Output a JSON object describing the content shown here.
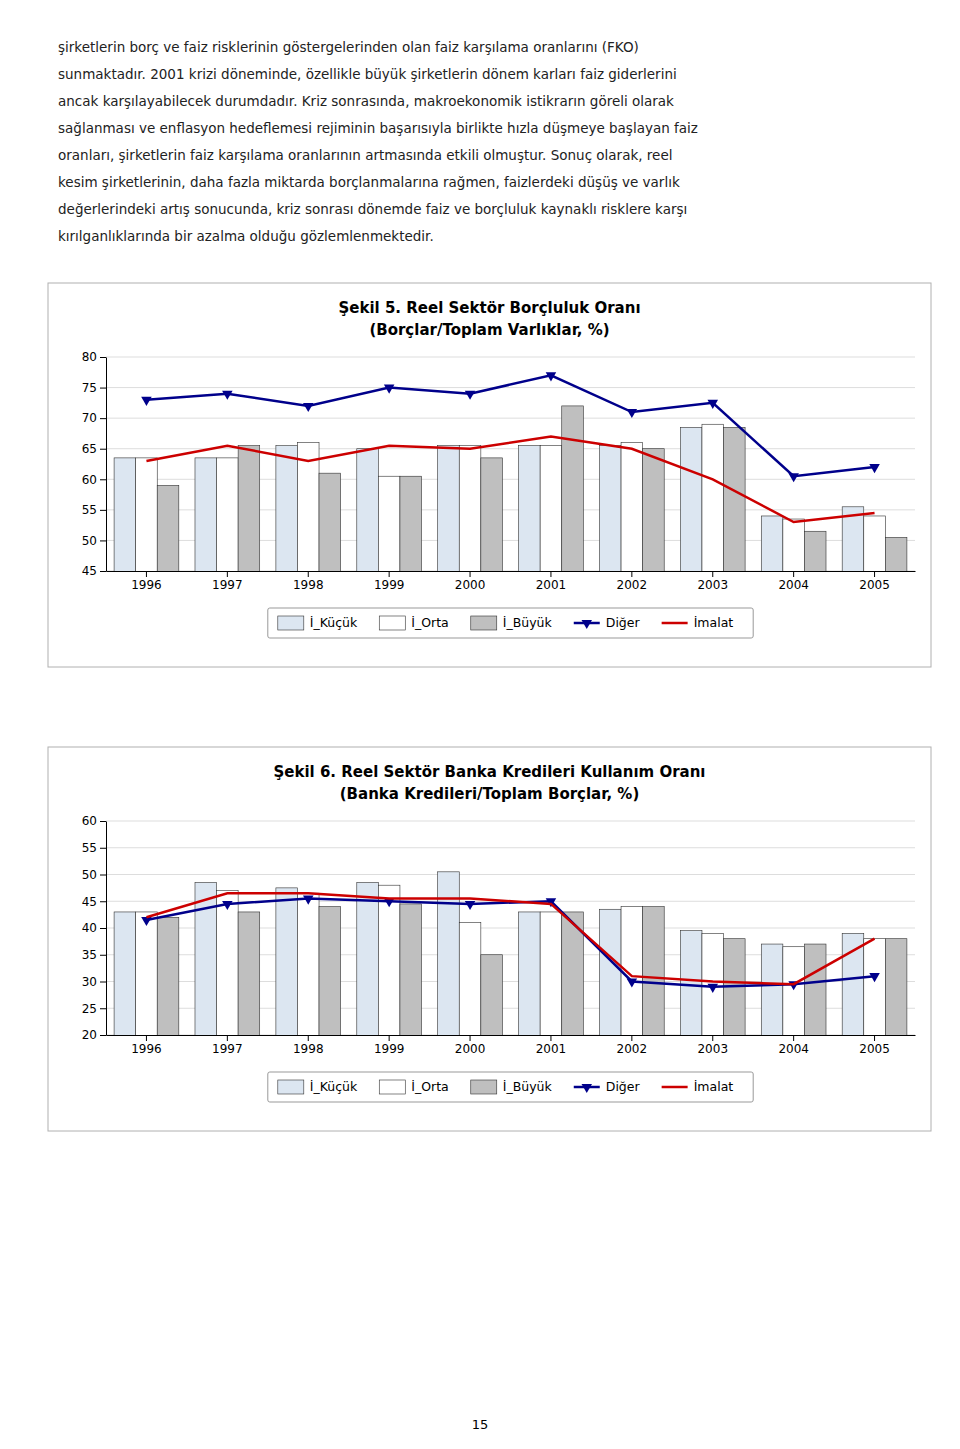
{
  "text": [
    "şirketlerin borç ve faiz risklerinin göstergelerinden olan faiz karşılama oranlarını (FKO)",
    "sunmaktadır. 2001 krizi döneminde, özellikle büyük şirketlerin dönem karları faiz giderlerini",
    "ancak karşılayabilecek durumdadır. Kriz sonrasında, makroekonomik istikrarın göreli olarak",
    "sağlanması ve enflasyon hedeflemesi rejiminin başarısıyla birlikte hızla düşmeye başlayan faiz",
    "oranları, şirketlerin faiz karşılama oranlarının artmasında etkili olmuştur. Sonuç olarak, reel",
    "kesim şirketlerinin, daha fazla miktarda borçlanmalarına rağmen, faizlerdeki düşüş ve varlık",
    "değerlerindeki artış sonucunda, kriz sonrası dönemde faiz ve borçluluk kaynaklı risklere karşı",
    "kırılganlıklarında bir azalma olduğu gözlemlenmektedir."
  ],
  "page_number": "15",
  "chart_data": [
    {
      "type": "bar",
      "title": "Şekil 5. Reel Sektör Borçluluk Oranı",
      "subtitle": "(Borçlar/Toplam Varlıklar, %)",
      "categories": [
        "1996",
        "1997",
        "1998",
        "1999",
        "2000",
        "2001",
        "2002",
        "2003",
        "2004",
        "2005"
      ],
      "series": [
        {
          "name": "İ_Küçük",
          "type": "bar",
          "color": "#dce6f1",
          "values": [
            63.5,
            63.5,
            65.5,
            65.0,
            65.5,
            65.5,
            65.5,
            68.5,
            54.0,
            55.5
          ]
        },
        {
          "name": "İ_Orta",
          "type": "bar",
          "color": "#ffffff",
          "values": [
            63.5,
            63.5,
            66.0,
            60.5,
            65.5,
            65.5,
            66.0,
            69.0,
            53.5,
            54.0
          ]
        },
        {
          "name": "İ_Büyük",
          "type": "bar",
          "color": "#bfbfbf",
          "values": [
            59.0,
            65.5,
            61.0,
            60.5,
            63.5,
            72.0,
            65.0,
            68.5,
            51.5,
            50.5
          ]
        },
        {
          "name": "Diğer",
          "type": "line",
          "color": "#00008b",
          "marker": "triangle-down",
          "values": [
            73.0,
            74.0,
            72.0,
            75.0,
            74.0,
            77.0,
            71.0,
            72.5,
            60.5,
            62.0
          ]
        },
        {
          "name": "İmalat",
          "type": "line",
          "color": "#cc0000",
          "values": [
            63.0,
            65.5,
            63.0,
            65.5,
            65.0,
            67.0,
            65.0,
            60.0,
            53.0,
            54.5
          ]
        }
      ],
      "ylim": [
        45,
        80
      ],
      "yticks": [
        45,
        50,
        55,
        60,
        65,
        70,
        75,
        80
      ],
      "grid": true,
      "legend": "bottom"
    },
    {
      "type": "bar",
      "title": "Şekil 6. Reel Sektör Banka Kredileri Kullanım Oranı",
      "subtitle": "(Banka Kredileri/Toplam Borçlar, %)",
      "categories": [
        "1996",
        "1997",
        "1998",
        "1999",
        "2000",
        "2001",
        "2002",
        "2003",
        "2004",
        "2005"
      ],
      "series": [
        {
          "name": "İ_Küçük",
          "type": "bar",
          "color": "#dce6f1",
          "values": [
            43.0,
            48.5,
            47.5,
            48.5,
            50.5,
            43.0,
            43.5,
            39.5,
            37.0,
            39.0
          ]
        },
        {
          "name": "İ_Orta",
          "type": "bar",
          "color": "#ffffff",
          "values": [
            43.0,
            47.0,
            46.5,
            48.0,
            41.0,
            43.0,
            44.0,
            39.0,
            36.5,
            38.0
          ]
        },
        {
          "name": "İ_Büyük",
          "type": "bar",
          "color": "#bfbfbf",
          "values": [
            42.0,
            43.0,
            44.0,
            44.5,
            35.0,
            43.0,
            44.0,
            38.0,
            37.0,
            38.0
          ]
        },
        {
          "name": "Diğer",
          "type": "line",
          "color": "#00008b",
          "marker": "triangle-down",
          "values": [
            41.5,
            44.5,
            45.5,
            45.0,
            44.5,
            45.0,
            30.0,
            29.0,
            29.5,
            31.0
          ]
        },
        {
          "name": "İmalat",
          "type": "line",
          "color": "#cc0000",
          "values": [
            42.0,
            46.5,
            46.5,
            45.5,
            45.5,
            44.5,
            31.0,
            30.0,
            29.5,
            38.0
          ]
        }
      ],
      "ylim": [
        20,
        60
      ],
      "yticks": [
        20,
        25,
        30,
        35,
        40,
        45,
        50,
        55,
        60
      ],
      "grid": true,
      "legend": "bottom"
    }
  ]
}
